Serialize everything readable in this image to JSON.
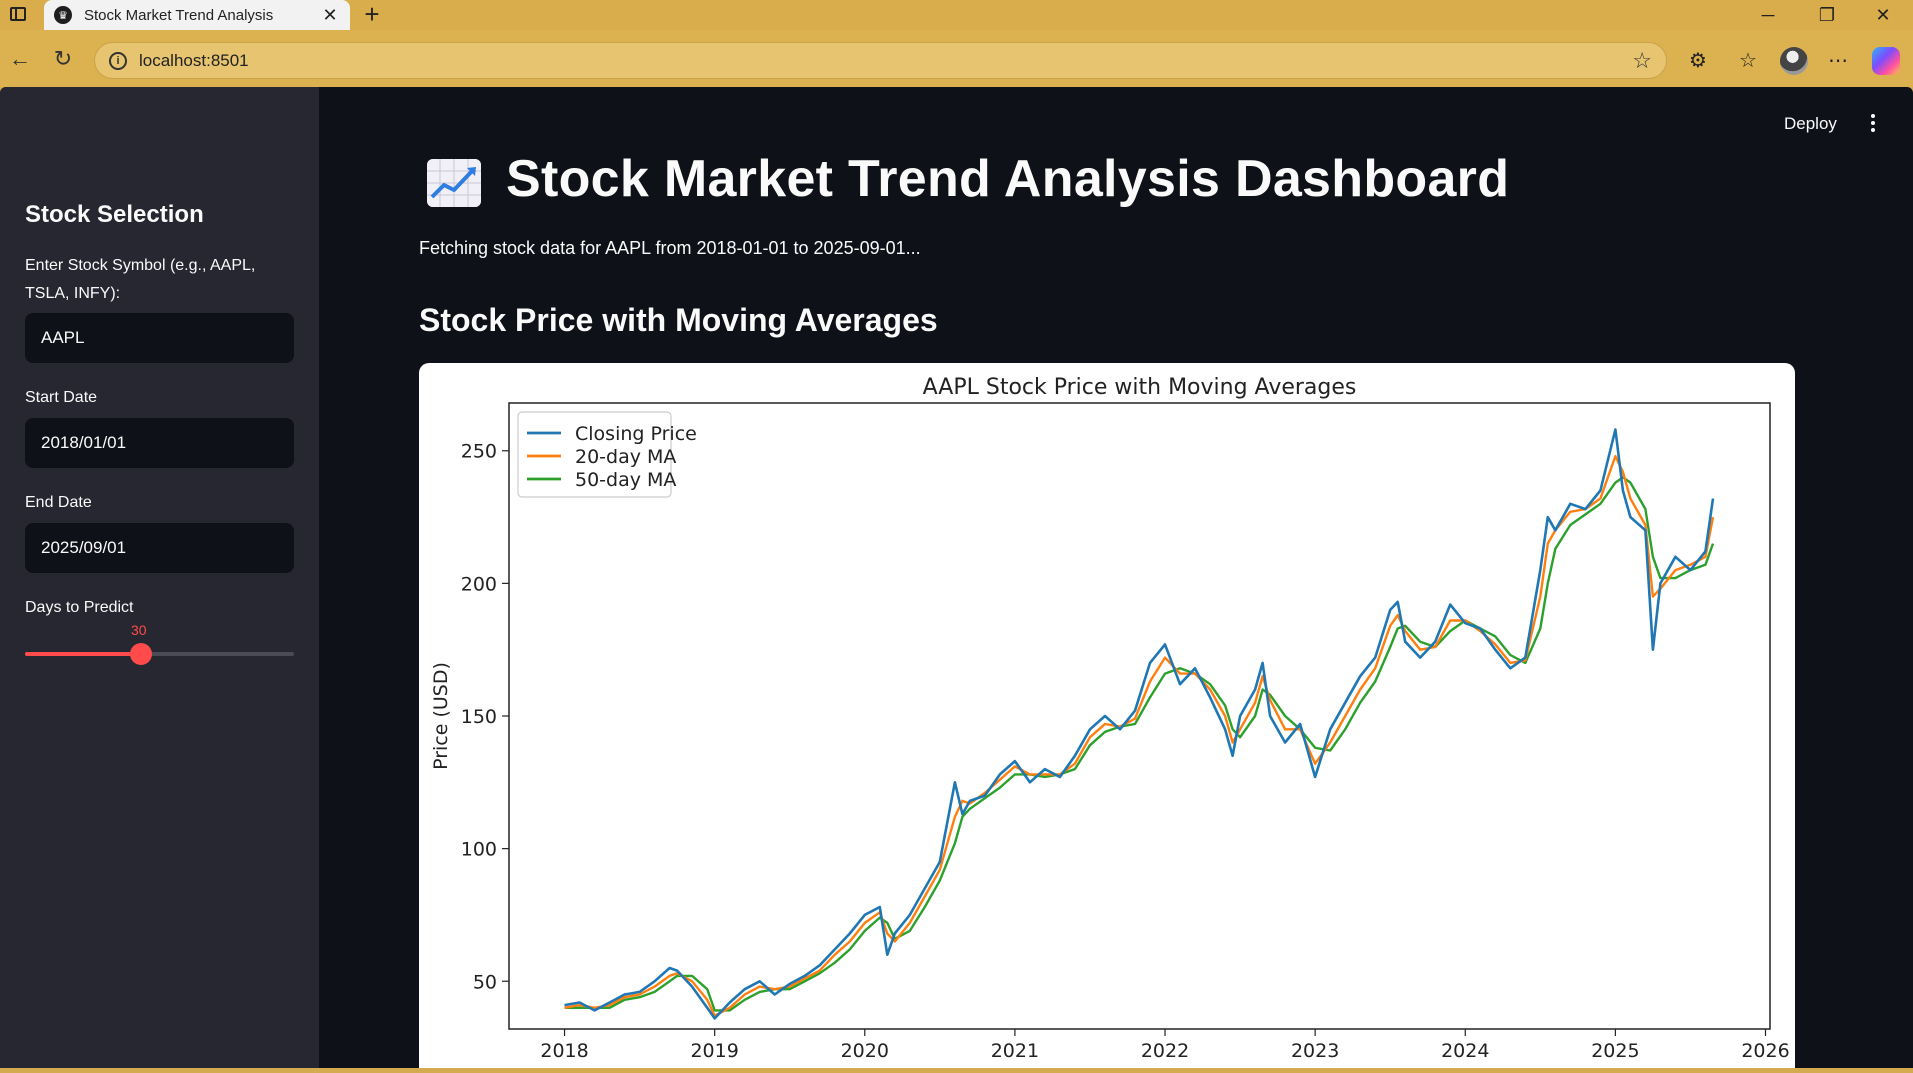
{
  "browser": {
    "tab_title": "Stock Market Trend Analysis",
    "tab_icon": "streamlit-crown-icon",
    "url": "localhost:8501"
  },
  "sidebar": {
    "title": "Stock Selection",
    "symbol_label": "Enter Stock Symbol (e.g., AAPL, TSLA, INFY):",
    "symbol_value": "AAPL",
    "start_label": "Start Date",
    "start_value": "2018/01/01",
    "end_label": "End Date",
    "end_value": "2025/09/01",
    "days_label": "Days to Predict",
    "days_value": "30",
    "days_fraction": 0.43
  },
  "header": {
    "deploy_label": "Deploy"
  },
  "main": {
    "title": "Stock Market Trend Analysis Dashboard",
    "status": "Fetching stock data for AAPL from 2018-01-01 to 2025-09-01...",
    "section_title": "Stock Price with Moving Averages"
  },
  "colors": {
    "accent": "#ff4b4b",
    "closing": "#1f77b4",
    "ma20": "#ff7f0e",
    "ma50": "#2ca02c"
  },
  "chart_data": {
    "type": "line",
    "title": "AAPL Stock Price with Moving Averages",
    "xlabel": "",
    "ylabel": "Price (USD)",
    "xlim": [
      2017.63,
      2026.03
    ],
    "ylim": [
      32,
      268
    ],
    "xticks": [
      2018,
      2019,
      2020,
      2021,
      2022,
      2023,
      2024,
      2025,
      2026
    ],
    "yticks": [
      50,
      100,
      150,
      200,
      250
    ],
    "legend": [
      "Closing Price",
      "20-day MA",
      "50-day MA"
    ],
    "legend_position": "top-left",
    "x": [
      2018.0,
      2018.1,
      2018.2,
      2018.3,
      2018.4,
      2018.5,
      2018.6,
      2018.7,
      2018.75,
      2018.85,
      2018.95,
      2019.0,
      2019.1,
      2019.2,
      2019.3,
      2019.4,
      2019.5,
      2019.6,
      2019.7,
      2019.8,
      2019.9,
      2020.0,
      2020.1,
      2020.15,
      2020.2,
      2020.3,
      2020.4,
      2020.5,
      2020.6,
      2020.65,
      2020.7,
      2020.8,
      2020.9,
      2021.0,
      2021.1,
      2021.2,
      2021.3,
      2021.4,
      2021.5,
      2021.6,
      2021.7,
      2021.8,
      2021.9,
      2022.0,
      2022.1,
      2022.2,
      2022.3,
      2022.4,
      2022.45,
      2022.5,
      2022.6,
      2022.65,
      2022.7,
      2022.8,
      2022.9,
      2023.0,
      2023.1,
      2023.2,
      2023.3,
      2023.4,
      2023.5,
      2023.55,
      2023.6,
      2023.7,
      2023.8,
      2023.9,
      2024.0,
      2024.1,
      2024.2,
      2024.3,
      2024.4,
      2024.5,
      2024.55,
      2024.6,
      2024.7,
      2024.8,
      2024.9,
      2025.0,
      2025.05,
      2025.1,
      2025.2,
      2025.25,
      2025.3,
      2025.4,
      2025.5,
      2025.6,
      2025.65
    ],
    "series": [
      {
        "name": "Closing Price",
        "values": [
          41,
          42,
          39,
          42,
          45,
          46,
          50,
          55,
          54,
          48,
          40,
          36,
          42,
          47,
          50,
          45,
          49,
          52,
          56,
          62,
          68,
          75,
          78,
          60,
          68,
          75,
          85,
          95,
          125,
          113,
          118,
          120,
          128,
          133,
          125,
          130,
          127,
          135,
          145,
          150,
          145,
          152,
          170,
          177,
          162,
          168,
          157,
          145,
          135,
          150,
          160,
          170,
          150,
          140,
          147,
          127,
          145,
          155,
          165,
          172,
          190,
          193,
          178,
          172,
          178,
          192,
          185,
          183,
          175,
          168,
          172,
          205,
          225,
          220,
          230,
          228,
          235,
          258,
          235,
          225,
          220,
          175,
          200,
          210,
          205,
          212,
          232
        ]
      },
      {
        "name": "20-day MA",
        "values": [
          40,
          41,
          40,
          41,
          44,
          45,
          48,
          52,
          53,
          50,
          43,
          37,
          40,
          45,
          48,
          47,
          48,
          51,
          54,
          60,
          65,
          72,
          76,
          68,
          65,
          72,
          82,
          92,
          112,
          118,
          117,
          121,
          126,
          131,
          128,
          128,
          128,
          132,
          142,
          147,
          146,
          149,
          163,
          172,
          166,
          166,
          160,
          150,
          140,
          145,
          155,
          165,
          156,
          145,
          145,
          132,
          140,
          150,
          160,
          168,
          184,
          188,
          182,
          175,
          176,
          186,
          186,
          182,
          177,
          170,
          171,
          195,
          215,
          220,
          227,
          228,
          232,
          248,
          242,
          232,
          222,
          195,
          198,
          205,
          207,
          210,
          225
        ]
      },
      {
        "name": "50-day MA",
        "values": [
          40,
          40,
          40,
          40,
          43,
          44,
          46,
          50,
          52,
          52,
          47,
          39,
          39,
          43,
          46,
          47,
          47,
          50,
          53,
          57,
          62,
          69,
          74,
          72,
          66,
          69,
          78,
          88,
          102,
          112,
          115,
          119,
          123,
          128,
          128,
          127,
          128,
          130,
          139,
          144,
          146,
          147,
          157,
          166,
          168,
          166,
          162,
          154,
          145,
          142,
          150,
          160,
          158,
          150,
          145,
          138,
          137,
          145,
          155,
          163,
          176,
          183,
          184,
          178,
          176,
          182,
          186,
          183,
          180,
          173,
          170,
          183,
          200,
          213,
          222,
          226,
          230,
          238,
          240,
          238,
          228,
          210,
          202,
          202,
          205,
          207,
          215
        ]
      }
    ]
  }
}
